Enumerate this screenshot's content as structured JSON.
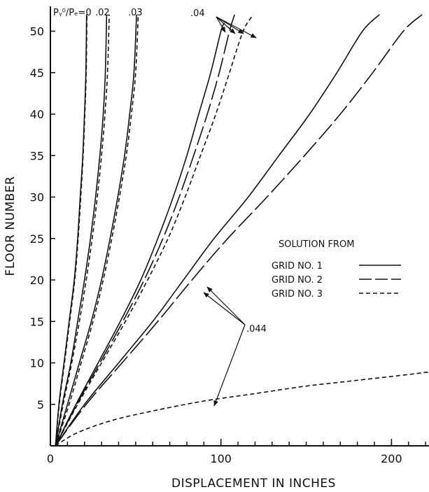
{
  "chart_data": {
    "type": "line",
    "title": "",
    "xlabel": "DISPLACEMENT IN INCHES",
    "ylabel": "FLOOR NUMBER",
    "xlim": [
      0,
      222
    ],
    "ylim": [
      0,
      53
    ],
    "x_ticks": [
      0,
      100,
      200
    ],
    "y_ticks": [
      5,
      10,
      15,
      20,
      25,
      30,
      35,
      40,
      45,
      50
    ],
    "grid": false,
    "parameter_label": "Pᵧ⁰/Pₑ=0",
    "parameter_values": [
      ".02",
      ".03",
      ".04",
      ".044"
    ],
    "legend": {
      "title": "SOLUTION FROM",
      "placement": "right",
      "entries": [
        {
          "label": "GRID NO. 1",
          "style": "solid"
        },
        {
          "label": "GRID NO. 2",
          "style": "long-dash"
        },
        {
          "label": "GRID NO. 3",
          "style": "short-dash"
        }
      ]
    },
    "series": [
      {
        "p_ratio": "0",
        "style": "solid",
        "points": [
          [
            3,
            0
          ],
          [
            5,
            5
          ],
          [
            8,
            10
          ],
          [
            11,
            15
          ],
          [
            14,
            20
          ],
          [
            16,
            25
          ],
          [
            17.5,
            30
          ],
          [
            19,
            35
          ],
          [
            20,
            40
          ],
          [
            20.8,
            45
          ],
          [
            21.2,
            52
          ]
        ]
      },
      {
        "p_ratio": "0",
        "style": "short-dash",
        "points": [
          [
            3,
            0
          ],
          [
            5.2,
            5
          ],
          [
            8.3,
            10
          ],
          [
            11.3,
            15
          ],
          [
            14.3,
            20
          ],
          [
            16.3,
            25
          ],
          [
            17.8,
            30
          ],
          [
            19.2,
            35
          ],
          [
            20.2,
            40
          ],
          [
            21,
            45
          ],
          [
            21.4,
            52
          ]
        ]
      },
      {
        "p_ratio": ".02",
        "style": "solid",
        "points": [
          [
            3,
            0
          ],
          [
            7,
            5
          ],
          [
            12,
            10
          ],
          [
            16,
            15
          ],
          [
            20,
            20
          ],
          [
            23.5,
            25
          ],
          [
            26.5,
            30
          ],
          [
            29,
            35
          ],
          [
            31,
            40
          ],
          [
            32.2,
            45
          ],
          [
            33,
            52
          ]
        ]
      },
      {
        "p_ratio": ".02",
        "style": "short-dash",
        "points": [
          [
            3,
            0
          ],
          [
            7.5,
            5
          ],
          [
            12.5,
            10
          ],
          [
            17,
            15
          ],
          [
            21,
            20
          ],
          [
            24.5,
            25
          ],
          [
            27.5,
            30
          ],
          [
            30,
            35
          ],
          [
            32,
            40
          ],
          [
            33.5,
            45
          ],
          [
            34.5,
            52
          ]
        ]
      },
      {
        "p_ratio": ".03",
        "style": "solid",
        "points": [
          [
            3,
            0
          ],
          [
            10,
            5
          ],
          [
            17,
            10
          ],
          [
            24,
            15
          ],
          [
            30,
            20
          ],
          [
            35,
            25
          ],
          [
            39.5,
            30
          ],
          [
            43.5,
            35
          ],
          [
            46.5,
            40
          ],
          [
            49,
            45
          ],
          [
            50.5,
            52
          ]
        ]
      },
      {
        "p_ratio": ".03",
        "style": "short-dash",
        "points": [
          [
            3,
            0
          ],
          [
            11,
            5
          ],
          [
            18,
            10
          ],
          [
            25,
            15
          ],
          [
            31,
            20
          ],
          [
            36,
            25
          ],
          [
            40.5,
            30
          ],
          [
            44.5,
            35
          ],
          [
            47.5,
            40
          ],
          [
            50,
            45
          ],
          [
            51.5,
            52
          ]
        ]
      },
      {
        "p_ratio": ".04",
        "style": "solid",
        "points": [
          [
            3,
            0
          ],
          [
            15,
            5
          ],
          [
            28,
            10
          ],
          [
            41,
            15
          ],
          [
            53,
            20
          ],
          [
            63,
            25
          ],
          [
            72,
            30
          ],
          [
            80,
            35
          ],
          [
            87,
            40
          ],
          [
            94,
            45
          ],
          [
            100,
            50
          ],
          [
            102,
            51
          ]
        ]
      },
      {
        "p_ratio": ".04",
        "style": "long-dash",
        "points": [
          [
            3,
            0
          ],
          [
            15.5,
            5
          ],
          [
            29,
            10
          ],
          [
            42.5,
            15
          ],
          [
            55,
            20
          ],
          [
            66,
            25
          ],
          [
            75.5,
            30
          ],
          [
            84,
            35
          ],
          [
            92,
            40
          ],
          [
            99,
            45
          ],
          [
            105,
            50
          ],
          [
            108,
            52
          ]
        ]
      },
      {
        "p_ratio": ".04",
        "style": "short-dash",
        "points": [
          [
            3,
            0
          ],
          [
            16,
            5
          ],
          [
            30,
            10
          ],
          [
            44,
            15
          ],
          [
            57,
            20
          ],
          [
            69,
            25
          ],
          [
            79,
            30
          ],
          [
            88,
            35
          ],
          [
            97,
            40
          ],
          [
            105,
            45
          ],
          [
            113,
            50
          ],
          [
            119,
            52
          ]
        ]
      },
      {
        "p_ratio": ".044",
        "style": "solid",
        "points": [
          [
            3,
            0
          ],
          [
            20,
            5
          ],
          [
            40,
            10
          ],
          [
            60,
            15
          ],
          [
            78,
            20
          ],
          [
            96,
            25
          ],
          [
            116,
            30
          ],
          [
            134,
            35
          ],
          [
            152,
            40
          ],
          [
            168,
            45
          ],
          [
            183,
            50
          ],
          [
            193,
            52
          ]
        ]
      },
      {
        "p_ratio": ".044",
        "style": "long-dash",
        "points": [
          [
            3,
            0
          ],
          [
            21,
            5
          ],
          [
            42,
            10
          ],
          [
            63,
            15
          ],
          [
            83,
            20
          ],
          [
            104,
            25
          ],
          [
            127,
            30
          ],
          [
            149,
            35
          ],
          [
            170,
            40
          ],
          [
            189,
            45
          ],
          [
            207,
            50
          ],
          [
            218,
            52
          ]
        ]
      },
      {
        "p_ratio": ".044",
        "style": "short-dash",
        "points": [
          [
            3,
            0
          ],
          [
            15,
            1.5
          ],
          [
            35,
            3
          ],
          [
            60,
            4.2
          ],
          [
            90,
            5.4
          ],
          [
            120,
            6.3
          ],
          [
            150,
            7.2
          ],
          [
            180,
            7.9
          ],
          [
            210,
            8.6
          ],
          [
            222,
            8.9
          ]
        ]
      }
    ]
  }
}
